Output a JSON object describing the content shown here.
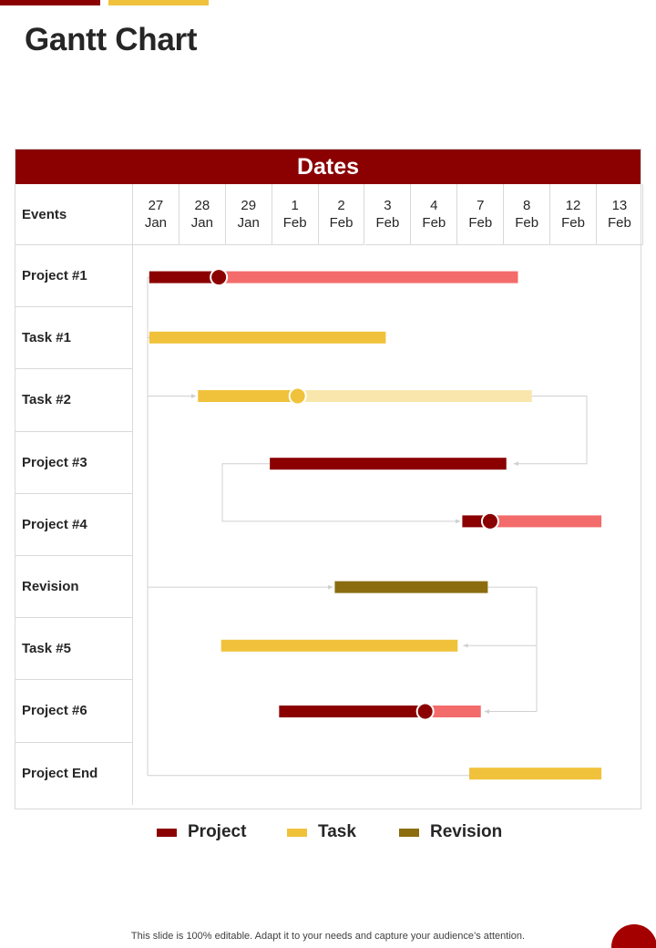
{
  "page": {
    "title": "Gantt Chart",
    "footer": "This slide is 100% editable. Adapt it to your needs and capture your audience’s attention."
  },
  "colors": {
    "brand_red": "#8b0000",
    "project_dark": "#8b0000",
    "project_light": "#f36b6b",
    "task_yellow": "#f0c23b",
    "task_light": "#f8e6ac",
    "revision": "#8b6d10",
    "connector": "#d0d0d0",
    "milestone_red": "#8b0000",
    "milestone_yellow": "#f0c23b"
  },
  "chart_data": {
    "type": "gantt",
    "header": "Dates",
    "row_header": "Events",
    "dates": [
      {
        "day": "27",
        "month": "Jan"
      },
      {
        "day": "28",
        "month": "Jan"
      },
      {
        "day": "29",
        "month": "Jan"
      },
      {
        "day": "1",
        "month": "Feb"
      },
      {
        "day": "2",
        "month": "Feb"
      },
      {
        "day": "3",
        "month": "Feb"
      },
      {
        "day": "4",
        "month": "Feb"
      },
      {
        "day": "7",
        "month": "Feb"
      },
      {
        "day": "8",
        "month": "Feb"
      },
      {
        "day": "12",
        "month": "Feb"
      },
      {
        "day": "13",
        "month": "Feb"
      }
    ],
    "events": [
      {
        "name": "Project #1",
        "category": "Project",
        "start": 0.35,
        "end": 8.3,
        "progress": 1.85
      },
      {
        "name": "Task #1",
        "category": "Task",
        "start": 0.35,
        "end": 5.45
      },
      {
        "name": "Task #2",
        "category": "Task",
        "start": 1.4,
        "end": 8.6,
        "progress": 3.55
      },
      {
        "name": "Project #3",
        "category": "Project",
        "start": 2.95,
        "end": 8.05
      },
      {
        "name": "Project #4",
        "category": "Project",
        "start": 7.1,
        "end": 10.1,
        "progress": 7.7
      },
      {
        "name": "Revision",
        "category": "Revision",
        "start": 4.35,
        "end": 7.65
      },
      {
        "name": "Task #5",
        "category": "Task",
        "start": 1.9,
        "end": 7.0
      },
      {
        "name": "Project #6",
        "category": "Project",
        "start": 3.15,
        "end": 7.5,
        "progress": 6.3
      },
      {
        "name": "Project End",
        "category": "Task",
        "start": 7.25,
        "end": 10.1
      }
    ],
    "dependencies": [
      {
        "from": 0,
        "to": 0
      },
      {
        "from": 0,
        "to": 1
      },
      {
        "from": 0,
        "to": 2
      },
      {
        "from": 2,
        "to": 3
      },
      {
        "from": 3,
        "to": 4
      },
      {
        "from": 0,
        "to": 5
      },
      {
        "from": 5,
        "to": 6
      },
      {
        "from": 5,
        "to": 7
      },
      {
        "from": 0,
        "to": 8
      }
    ],
    "legend": [
      {
        "label": "Project",
        "color": "#8b0000"
      },
      {
        "label": "Task",
        "color": "#f0c23b"
      },
      {
        "label": "Revision",
        "color": "#8b6d10"
      }
    ]
  }
}
